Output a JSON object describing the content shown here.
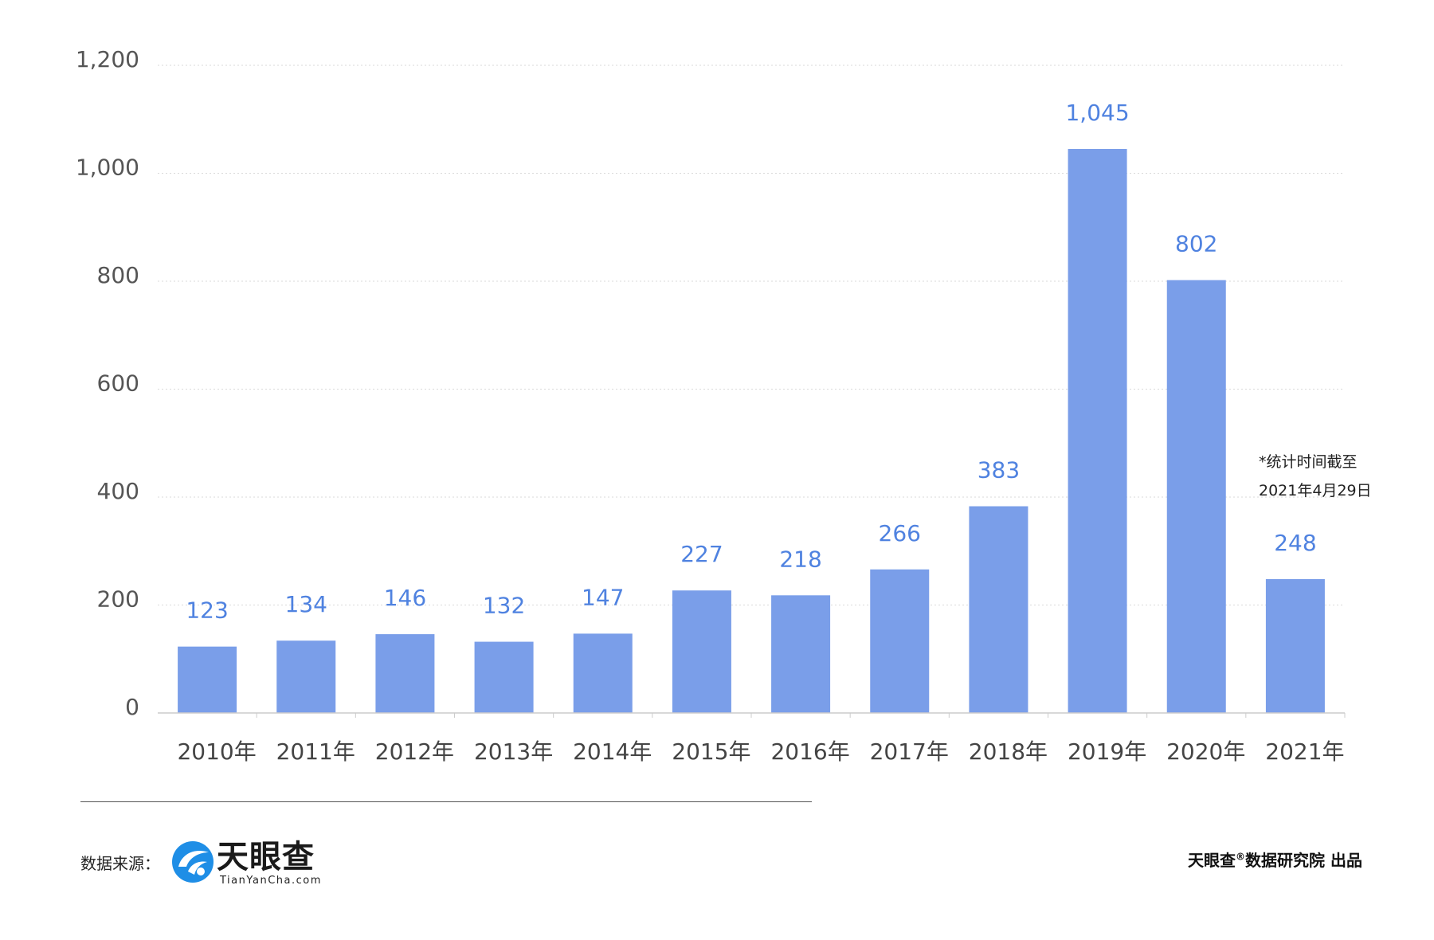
{
  "chart_data": {
    "type": "bar",
    "categories": [
      "2010年",
      "2011年",
      "2012年",
      "2013年",
      "2014年",
      "2015年",
      "2016年",
      "2017年",
      "2018年",
      "2019年",
      "2020年",
      "2021年"
    ],
    "values": [
      123,
      134,
      146,
      132,
      147,
      227,
      218,
      266,
      383,
      1045,
      802,
      248
    ],
    "value_labels": [
      "123",
      "134",
      "146",
      "132",
      "147",
      "227",
      "218",
      "266",
      "383",
      "1,045",
      "802",
      "248"
    ],
    "ylim": [
      0,
      1200
    ],
    "y_ticks": [
      0,
      200,
      400,
      600,
      800,
      1000,
      1200
    ],
    "y_tick_labels": [
      "0",
      "200",
      "400",
      "600",
      "800",
      "1,000",
      "1,200"
    ],
    "grid": true,
    "bar_color": "#7a9ee9",
    "label_color": "#4f82e0",
    "annotation": [
      "*统计时间截至",
      "2021年4月29日"
    ]
  },
  "footer": {
    "source_label": "数据来源：",
    "logo_text": "天眼查",
    "logo_subtext": "TianYanCha.com",
    "logo_icon": "tianyancha-logo-icon",
    "credit_main": "天眼查",
    "credit_mark": "®",
    "credit_rest": "数据研究院 出品"
  }
}
